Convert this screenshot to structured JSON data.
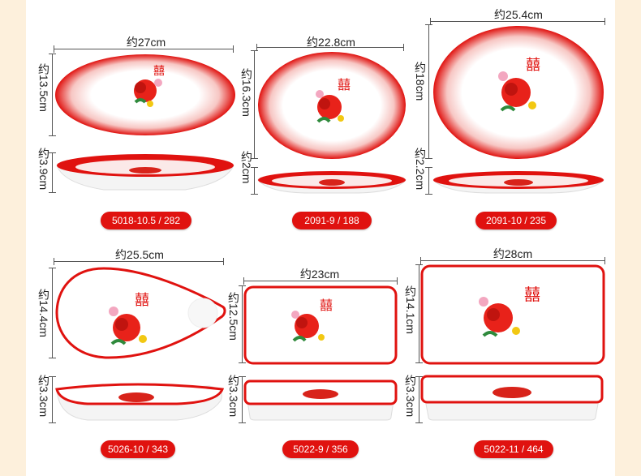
{
  "colors": {
    "background": "#fdf0dc",
    "panel": "#ffffff",
    "brand_red": "#e0120f"
  },
  "products": [
    {
      "code": "5018-10.5 / 282",
      "width": "约27cm",
      "depth": "约13.5cm",
      "height": "约3.9cm",
      "shape": "oval"
    },
    {
      "code": "2091-9 / 188",
      "width": "约22.8cm",
      "depth": "约16.3cm",
      "height": "约2cm",
      "shape": "oval"
    },
    {
      "code": "2091-10 / 235",
      "width": "约25.4cm",
      "depth": "约18cm",
      "height": "约2.2cm",
      "shape": "oval"
    },
    {
      "code": "5026-10 / 343",
      "width": "约25.5cm",
      "depth": "约14.4cm",
      "height": "约3.3cm",
      "shape": "drop"
    },
    {
      "code": "5022-9 / 356",
      "width": "约23cm",
      "depth": "约12.5cm",
      "height": "约3.3cm",
      "shape": "rectangle"
    },
    {
      "code": "5022-11 / 464",
      "width": "约28cm",
      "depth": "约14.1cm",
      "height": "约3.3cm",
      "shape": "rectangle"
    }
  ]
}
